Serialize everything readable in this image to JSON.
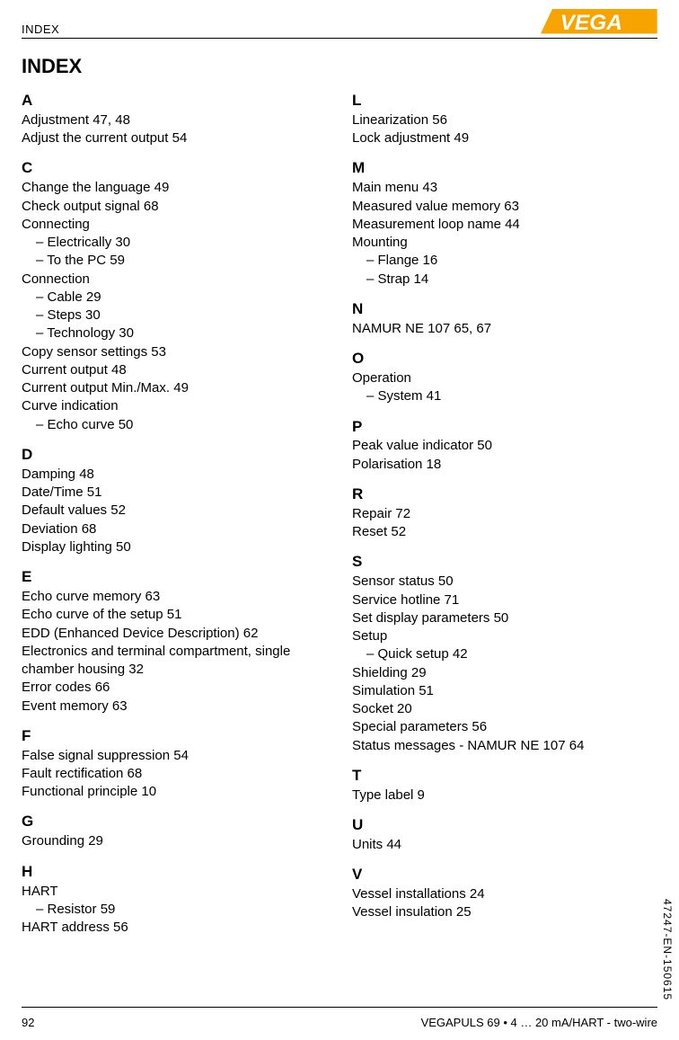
{
  "header": {
    "label": "INDEX"
  },
  "title": "INDEX",
  "logo": {
    "text": "VEGA",
    "bg": "#f7a400",
    "fg": "#ffffff"
  },
  "left": [
    {
      "letter": "A",
      "items": [
        {
          "t": "Adjustment  47, 48"
        },
        {
          "t": "Adjust the current output  54"
        }
      ]
    },
    {
      "letter": "C",
      "items": [
        {
          "t": "Change the language  49"
        },
        {
          "t": "Check output signal  68"
        },
        {
          "t": "Connecting"
        },
        {
          "t": "– Electrically  30",
          "sub": true
        },
        {
          "t": "– To the PC  59",
          "sub": true
        },
        {
          "t": "Connection"
        },
        {
          "t": "– Cable  29",
          "sub": true
        },
        {
          "t": "– Steps  30",
          "sub": true
        },
        {
          "t": "– Technology  30",
          "sub": true
        },
        {
          "t": "Copy sensor settings  53"
        },
        {
          "t": "Current output  48"
        },
        {
          "t": "Current output Min./Max.  49"
        },
        {
          "t": "Curve indication"
        },
        {
          "t": "– Echo curve  50",
          "sub": true
        }
      ]
    },
    {
      "letter": "D",
      "items": [
        {
          "t": "Damping  48"
        },
        {
          "t": "Date/Time  51"
        },
        {
          "t": "Default values  52"
        },
        {
          "t": "Deviation  68"
        },
        {
          "t": "Display lighting  50"
        }
      ]
    },
    {
      "letter": "E",
      "items": [
        {
          "t": "Echo curve memory  63"
        },
        {
          "t": "Echo curve of the setup  51"
        },
        {
          "t": "EDD (Enhanced Device Description)  62"
        },
        {
          "t": "Electronics and terminal compartment, single chamber housing  32"
        },
        {
          "t": "Error codes  66"
        },
        {
          "t": "Event memory  63"
        }
      ]
    },
    {
      "letter": "F",
      "items": [
        {
          "t": "False signal suppression  54"
        },
        {
          "t": "Fault rectification  68"
        },
        {
          "t": "Functional principle  10"
        }
      ]
    },
    {
      "letter": "G",
      "items": [
        {
          "t": "Grounding  29"
        }
      ]
    },
    {
      "letter": "H",
      "items": [
        {
          "t": "HART"
        },
        {
          "t": "– Resistor  59",
          "sub": true
        },
        {
          "t": "HART address  56"
        }
      ]
    }
  ],
  "right": [
    {
      "letter": "L",
      "items": [
        {
          "t": "Linearization  56"
        },
        {
          "t": "Lock adjustment  49"
        }
      ]
    },
    {
      "letter": "M",
      "items": [
        {
          "t": "Main menu  43"
        },
        {
          "t": "Measured value memory  63"
        },
        {
          "t": "Measurement loop name  44"
        },
        {
          "t": "Mounting"
        },
        {
          "t": "– Flange  16",
          "sub": true
        },
        {
          "t": "– Strap  14",
          "sub": true
        }
      ]
    },
    {
      "letter": "N",
      "items": [
        {
          "t": "NAMUR NE 107  65, 67"
        }
      ]
    },
    {
      "letter": "O",
      "items": [
        {
          "t": "Operation"
        },
        {
          "t": "– System  41",
          "sub": true
        }
      ]
    },
    {
      "letter": "P",
      "items": [
        {
          "t": "Peak value indicator  50"
        },
        {
          "t": "Polarisation  18"
        }
      ]
    },
    {
      "letter": "R",
      "items": [
        {
          "t": "Repair  72"
        },
        {
          "t": "Reset  52"
        }
      ]
    },
    {
      "letter": "S",
      "items": [
        {
          "t": "Sensor status  50"
        },
        {
          "t": "Service hotline  71"
        },
        {
          "t": "Set display parameters  50"
        },
        {
          "t": "Setup"
        },
        {
          "t": "– Quick setup  42",
          "sub": true
        },
        {
          "t": "Shielding  29"
        },
        {
          "t": "Simulation  51"
        },
        {
          "t": "Socket  20"
        },
        {
          "t": "Special parameters  56"
        },
        {
          "t": "Status messages - NAMUR NE 107  64"
        }
      ]
    },
    {
      "letter": "T",
      "items": [
        {
          "t": "Type label  9"
        }
      ]
    },
    {
      "letter": "U",
      "items": [
        {
          "t": "Units  44"
        }
      ]
    },
    {
      "letter": "V",
      "items": [
        {
          "t": "Vessel installations  24"
        },
        {
          "t": "Vessel insulation  25"
        }
      ]
    }
  ],
  "footer": {
    "page": "92",
    "right": "VEGAPULS 69 • 4 … 20 mA/HART - two-wire",
    "side": "47247-EN-150615"
  }
}
